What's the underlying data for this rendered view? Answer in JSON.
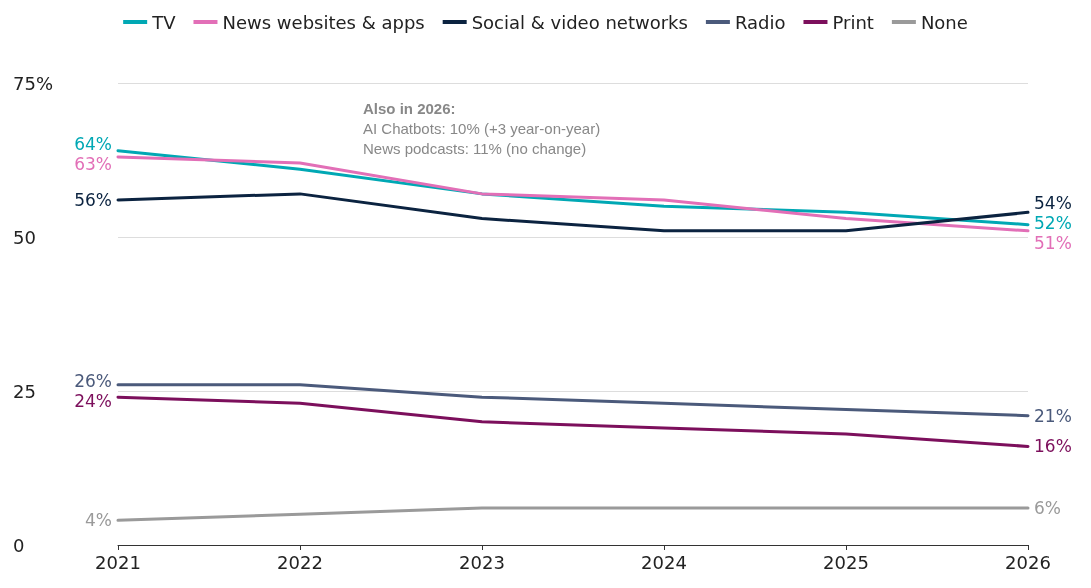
{
  "chart_data": {
    "type": "line",
    "categories": [
      "2021",
      "2022",
      "2023",
      "2024",
      "2025",
      "2026"
    ],
    "series": [
      {
        "name": "TV",
        "color": "#00a8b4",
        "values": [
          64,
          61,
          57,
          55,
          54,
          52
        ],
        "value_labels": [
          "64%",
          null,
          null,
          null,
          null,
          "52%"
        ]
      },
      {
        "name": "News websites & apps",
        "color": "#e26fb7",
        "values": [
          63,
          62,
          57,
          56,
          53,
          51
        ],
        "value_labels": [
          "63%",
          null,
          null,
          null,
          null,
          "51%"
        ]
      },
      {
        "name": "Social & video networks",
        "color": "#0b2340",
        "values": [
          56,
          57,
          53,
          51,
          51,
          54
        ],
        "value_labels": [
          "56%",
          null,
          null,
          null,
          null,
          "54%"
        ]
      },
      {
        "name": "Radio",
        "color": "#4b5a7b",
        "values": [
          26,
          26,
          24,
          23,
          22,
          21
        ],
        "value_labels": [
          "26%",
          null,
          null,
          null,
          null,
          "21%"
        ]
      },
      {
        "name": "Print",
        "color": "#7c0f5c",
        "values": [
          24,
          23,
          20,
          19,
          18,
          16
        ],
        "value_labels": [
          "24%",
          null,
          null,
          null,
          null,
          "16%"
        ]
      },
      {
        "name": "None",
        "color": "#9a9a9a",
        "values": [
          4,
          5,
          6,
          6,
          6,
          6
        ],
        "value_labels": [
          "4%",
          null,
          null,
          null,
          null,
          "6%"
        ]
      }
    ],
    "ylim": [
      0,
      75
    ],
    "yticks": [
      0,
      25,
      50,
      {
        "value": 75,
        "label": "75%"
      }
    ],
    "grid": "y",
    "legend": "top",
    "marker": "none",
    "line_style": "solid",
    "annotations": [
      "Also in 2026:",
      "AI Chatbots: 10% (+3 year-on-year)",
      "News podcasts: 11% (no change)"
    ]
  }
}
